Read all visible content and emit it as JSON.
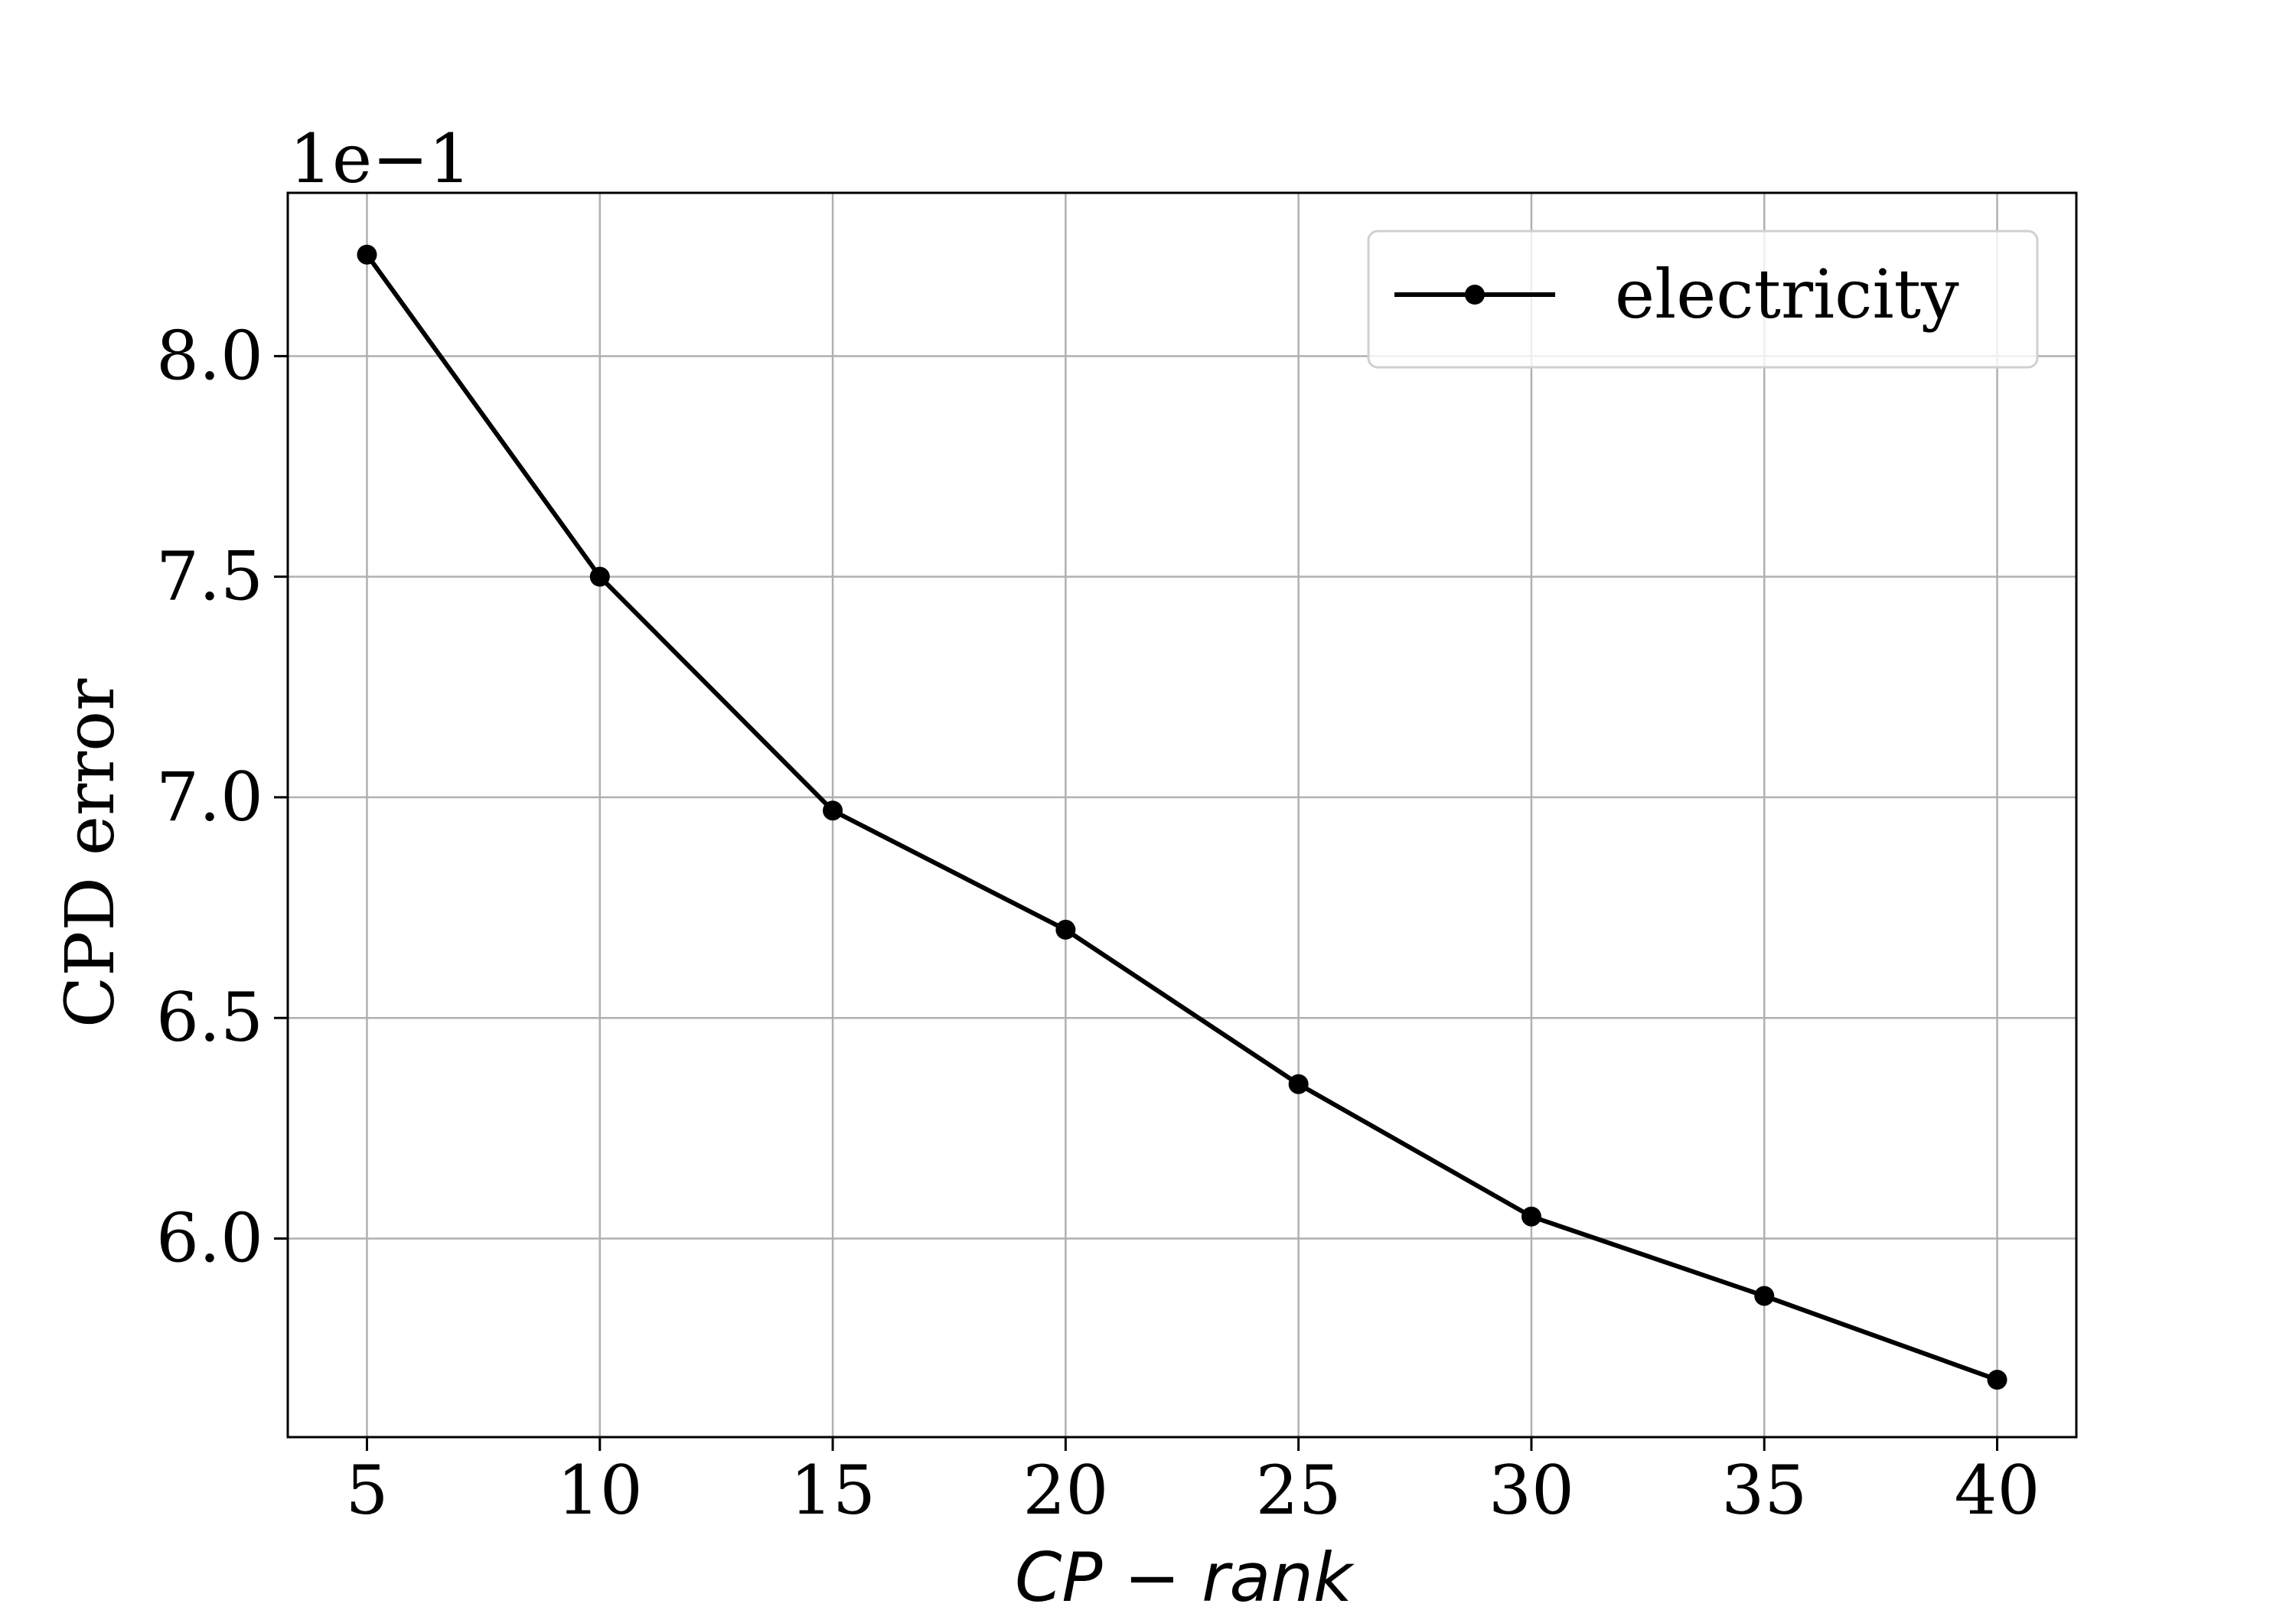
{
  "chart_data": {
    "type": "line",
    "title": "",
    "xlabel": "CP − rank",
    "ylabel": "CPD error",
    "y_offset_label": "1e−1",
    "x_ticks": [
      5,
      10,
      15,
      20,
      25,
      30,
      35,
      40
    ],
    "y_ticks": [
      6.0,
      6.5,
      7.0,
      7.5,
      8.0
    ],
    "x_tick_labels": [
      "5",
      "10",
      "15",
      "20",
      "25",
      "30",
      "35",
      "40"
    ],
    "y_tick_labels": [
      "6.0",
      "6.5",
      "7.0",
      "7.5",
      "8.0"
    ],
    "xlim": [
      3.3,
      41.7
    ],
    "ylim": [
      5.55,
      8.37
    ],
    "grid": true,
    "legend_position": "top-right",
    "series": [
      {
        "name": "electricity",
        "color": "#000000",
        "marker": "circle",
        "x": [
          5,
          10,
          15,
          20,
          25,
          30,
          35,
          40
        ],
        "y": [
          8.23,
          7.5,
          6.97,
          6.7,
          6.35,
          6.05,
          5.87,
          5.68
        ]
      }
    ]
  }
}
